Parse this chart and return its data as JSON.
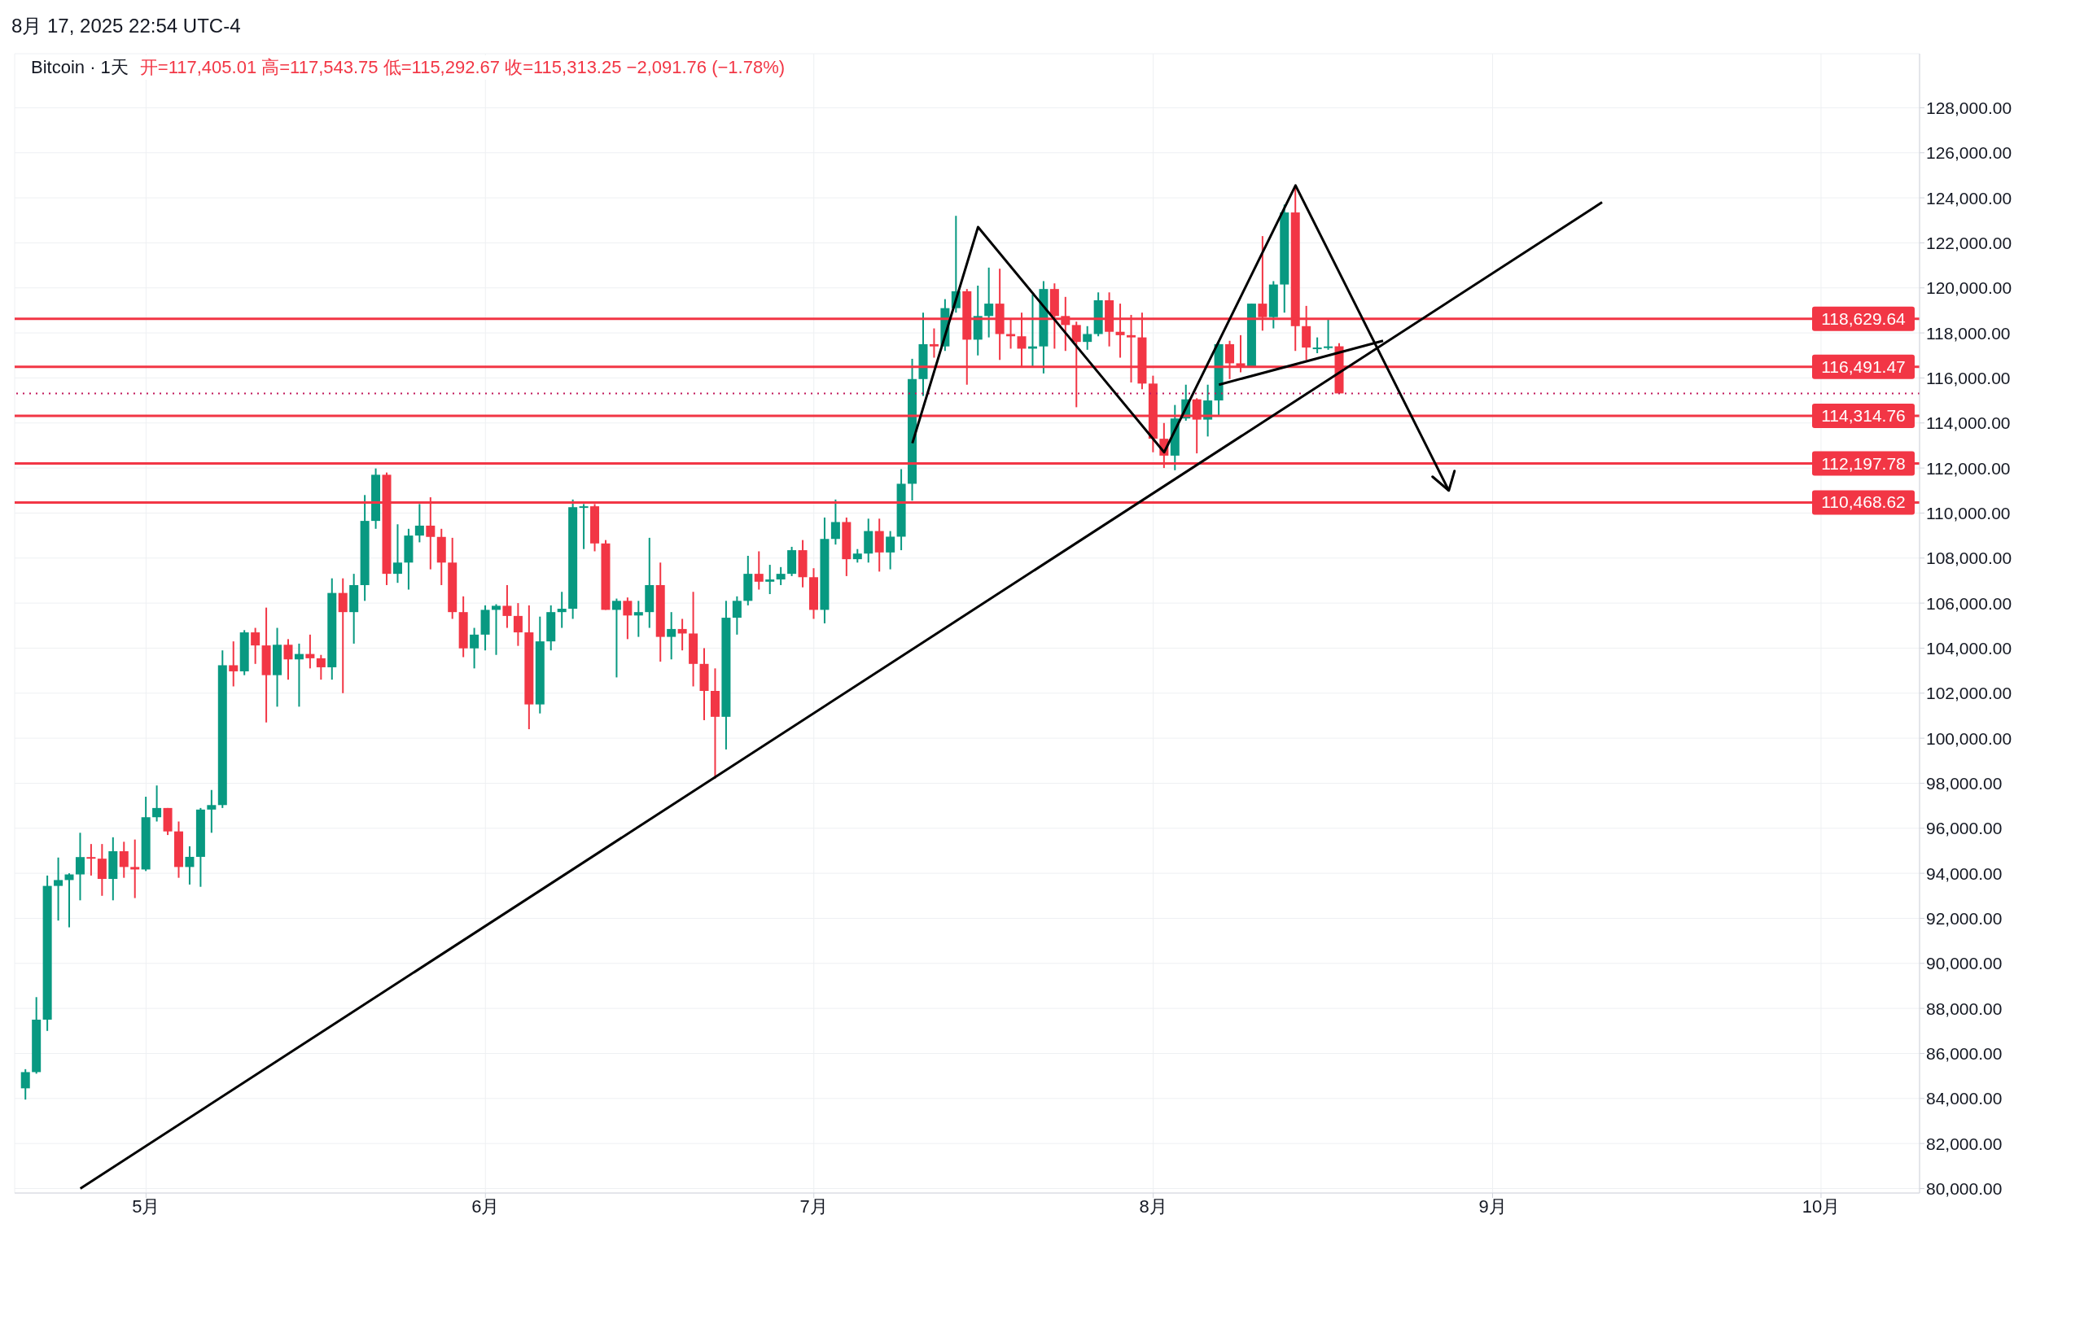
{
  "chart_data": {
    "type": "candlestick",
    "title": "Bitcoin · 1天",
    "annotations": [
      "8月 17, 2025 22:54 UTC-4",
      "开=117,405.01 高=117,543.75 低=115,292.67 收=115,313.25 −2,091.76 (−1.78%)"
    ],
    "x": [
      "2025-04-20",
      "2025-04-21",
      "2025-04-22",
      "2025-04-23",
      "2025-04-24",
      "2025-04-25",
      "2025-04-26",
      "2025-04-27",
      "2025-04-28",
      "2025-04-29",
      "2025-04-30",
      "2025-05-01",
      "2025-05-02",
      "2025-05-03",
      "2025-05-04",
      "2025-05-05",
      "2025-05-06",
      "2025-05-07",
      "2025-05-08",
      "2025-05-09",
      "2025-05-10",
      "2025-05-11",
      "2025-05-12",
      "2025-05-13",
      "2025-05-14",
      "2025-05-15",
      "2025-05-16",
      "2025-05-17",
      "2025-05-18",
      "2025-05-19",
      "2025-05-20",
      "2025-05-21",
      "2025-05-22",
      "2025-05-23",
      "2025-05-24",
      "2025-05-25",
      "2025-05-26",
      "2025-05-27",
      "2025-05-28",
      "2025-05-29",
      "2025-05-30",
      "2025-05-31",
      "2025-06-01",
      "2025-06-02",
      "2025-06-03",
      "2025-06-04",
      "2025-06-05",
      "2025-06-06",
      "2025-06-07",
      "2025-06-08",
      "2025-06-09",
      "2025-06-10",
      "2025-06-11",
      "2025-06-12",
      "2025-06-13",
      "2025-06-14",
      "2025-06-15",
      "2025-06-16",
      "2025-06-17",
      "2025-06-18",
      "2025-06-19",
      "2025-06-20",
      "2025-06-21",
      "2025-06-22",
      "2025-06-23",
      "2025-06-24",
      "2025-06-25",
      "2025-06-26",
      "2025-06-27",
      "2025-06-28",
      "2025-06-29",
      "2025-06-30",
      "2025-07-01",
      "2025-07-02",
      "2025-07-03",
      "2025-07-04",
      "2025-07-05",
      "2025-07-06",
      "2025-07-07",
      "2025-07-08",
      "2025-07-09",
      "2025-07-10",
      "2025-07-11",
      "2025-07-12",
      "2025-07-13",
      "2025-07-14",
      "2025-07-15",
      "2025-07-16",
      "2025-07-17",
      "2025-07-18",
      "2025-07-19",
      "2025-07-20",
      "2025-07-21",
      "2025-07-22",
      "2025-07-23",
      "2025-07-24",
      "2025-07-25",
      "2025-07-26",
      "2025-07-27",
      "2025-07-28",
      "2025-07-29",
      "2025-07-30",
      "2025-07-31",
      "2025-08-01",
      "2025-08-02",
      "2025-08-03",
      "2025-08-04",
      "2025-08-05",
      "2025-08-06",
      "2025-08-07",
      "2025-08-08",
      "2025-08-09",
      "2025-08-10",
      "2025-08-11",
      "2025-08-12",
      "2025-08-13",
      "2025-08-14",
      "2025-08-15",
      "2025-08-16",
      "2025-08-17",
      "2025-08-18"
    ],
    "ohlc": [
      [
        84450,
        85300,
        83950,
        85170
      ],
      [
        85170,
        88500,
        85100,
        87500
      ],
      [
        87500,
        93900,
        87000,
        93440
      ],
      [
        93440,
        94700,
        91900,
        93700
      ],
      [
        93700,
        94000,
        91600,
        93950
      ],
      [
        93950,
        95800,
        92800,
        94720
      ],
      [
        94720,
        95300,
        93900,
        94650
      ],
      [
        94650,
        95300,
        93000,
        93750
      ],
      [
        93750,
        95600,
        92800,
        94980
      ],
      [
        94980,
        95400,
        93800,
        94280
      ],
      [
        94280,
        95500,
        92900,
        94170
      ],
      [
        94170,
        97400,
        94100,
        96490
      ],
      [
        96490,
        97900,
        96300,
        96900
      ],
      [
        96900,
        96900,
        95700,
        95860
      ],
      [
        95860,
        96300,
        93800,
        94280
      ],
      [
        94280,
        95200,
        93500,
        94730
      ],
      [
        94730,
        96900,
        93400,
        96830
      ],
      [
        96830,
        97700,
        95800,
        97030
      ],
      [
        97030,
        103900,
        96900,
        103240
      ],
      [
        103240,
        104300,
        102300,
        102970
      ],
      [
        102970,
        104800,
        102800,
        104700
      ],
      [
        104700,
        104900,
        103300,
        104120
      ],
      [
        104120,
        105800,
        100700,
        102800
      ],
      [
        102800,
        104900,
        101400,
        104150
      ],
      [
        104150,
        104400,
        102600,
        103500
      ],
      [
        103500,
        104200,
        101400,
        103740
      ],
      [
        103740,
        104600,
        103100,
        103550
      ],
      [
        103550,
        103700,
        102600,
        103150
      ],
      [
        103150,
        107100,
        102600,
        106450
      ],
      [
        106450,
        107100,
        102000,
        105600
      ],
      [
        105600,
        107300,
        104200,
        106800
      ],
      [
        106800,
        110800,
        106100,
        109650
      ],
      [
        109650,
        111980,
        109300,
        111700
      ],
      [
        111700,
        111800,
        106800,
        107300
      ],
      [
        107300,
        109500,
        106900,
        107800
      ],
      [
        107800,
        109300,
        106600,
        109000
      ],
      [
        109000,
        110400,
        108700,
        109440
      ],
      [
        109440,
        110700,
        107500,
        108940
      ],
      [
        108940,
        109300,
        106800,
        107800
      ],
      [
        107800,
        108900,
        105300,
        105600
      ],
      [
        105600,
        106300,
        103600,
        103990
      ],
      [
        103990,
        104900,
        103100,
        104600
      ],
      [
        104600,
        105900,
        103900,
        105700
      ],
      [
        105700,
        105950,
        103700,
        105880
      ],
      [
        105880,
        106800,
        104900,
        105430
      ],
      [
        105430,
        106000,
        104100,
        104700
      ],
      [
        104700,
        105900,
        100400,
        101500
      ],
      [
        101500,
        105400,
        101100,
        104300
      ],
      [
        104300,
        105900,
        103900,
        105600
      ],
      [
        105600,
        106500,
        104900,
        105750
      ],
      [
        105750,
        110600,
        105300,
        110260
      ],
      [
        110260,
        110400,
        108400,
        110300
      ],
      [
        110300,
        110400,
        108300,
        108650
      ],
      [
        108650,
        108800,
        105700,
        105700
      ],
      [
        105700,
        106200,
        102700,
        106100
      ],
      [
        106100,
        106250,
        104400,
        105450
      ],
      [
        105450,
        106100,
        104500,
        105600
      ],
      [
        105600,
        108900,
        104900,
        106800
      ],
      [
        106800,
        107800,
        103400,
        104500
      ],
      [
        104500,
        105600,
        103500,
        104850
      ],
      [
        104850,
        105300,
        103900,
        104650
      ],
      [
        104650,
        106500,
        102300,
        103300
      ],
      [
        103300,
        104000,
        100800,
        102100
      ],
      [
        102100,
        103100,
        98200,
        100950
      ],
      [
        100950,
        106100,
        99500,
        105350
      ],
      [
        105350,
        106300,
        104600,
        106100
      ],
      [
        106100,
        108100,
        105900,
        107300
      ],
      [
        107300,
        108300,
        106600,
        106950
      ],
      [
        106950,
        107700,
        106400,
        107050
      ],
      [
        107050,
        107600,
        106800,
        107300
      ],
      [
        107300,
        108500,
        107200,
        108350
      ],
      [
        108350,
        108800,
        106700,
        107150
      ],
      [
        107150,
        107550,
        105300,
        105700
      ],
      [
        105700,
        109800,
        105100,
        108850
      ],
      [
        108850,
        110600,
        108600,
        109600
      ],
      [
        109600,
        109800,
        107200,
        107950
      ],
      [
        107950,
        108400,
        107800,
        108200
      ],
      [
        108200,
        109750,
        107800,
        109200
      ],
      [
        109200,
        109750,
        107400,
        108250
      ],
      [
        108250,
        109200,
        107500,
        108950
      ],
      [
        108950,
        111950,
        108350,
        111300
      ],
      [
        111300,
        116850,
        110550,
        115950
      ],
      [
        115950,
        118900,
        115200,
        117500
      ],
      [
        117500,
        118200,
        116900,
        117400
      ],
      [
        117400,
        119500,
        117200,
        119100
      ],
      [
        119100,
        123200,
        118900,
        119850
      ],
      [
        119850,
        119950,
        115700,
        117700
      ],
      [
        117700,
        120100,
        117000,
        118750
      ],
      [
        118750,
        120900,
        117800,
        119300
      ],
      [
        119300,
        120850,
        116800,
        117950
      ],
      [
        117950,
        118650,
        117300,
        117850
      ],
      [
        117850,
        118900,
        116500,
        117300
      ],
      [
        117300,
        119700,
        116500,
        117400
      ],
      [
        117400,
        120300,
        116200,
        119950
      ],
      [
        119950,
        120200,
        117300,
        118750
      ],
      [
        118750,
        119600,
        117200,
        118350
      ],
      [
        118350,
        118500,
        114700,
        117600
      ],
      [
        117600,
        118300,
        117250,
        117950
      ],
      [
        117950,
        119800,
        117850,
        119450
      ],
      [
        119450,
        119800,
        117400,
        118050
      ],
      [
        118050,
        119300,
        116900,
        117900
      ],
      [
        117900,
        118800,
        115800,
        117800
      ],
      [
        117800,
        118900,
        115500,
        115750
      ],
      [
        115750,
        116100,
        112700,
        113300
      ],
      [
        113300,
        114000,
        112000,
        112550
      ],
      [
        112550,
        114800,
        111900,
        114200
      ],
      [
        114200,
        115700,
        114100,
        115050
      ],
      [
        115050,
        115100,
        112650,
        114150
      ],
      [
        114150,
        115700,
        113400,
        115000
      ],
      [
        115000,
        117600,
        114300,
        117500
      ],
      [
        117500,
        117650,
        115950,
        116650
      ],
      [
        116650,
        117900,
        116250,
        116500
      ],
      [
        116500,
        119300,
        116500,
        119300
      ],
      [
        119300,
        122300,
        118100,
        118700
      ],
      [
        118700,
        120300,
        118200,
        120150
      ],
      [
        120150,
        123700,
        118900,
        123350
      ],
      [
        123350,
        124450,
        117200,
        118300
      ],
      [
        118300,
        119200,
        116800,
        117350
      ],
      [
        117350,
        117800,
        117100,
        117350
      ],
      [
        117350,
        118600,
        117250,
        117400
      ],
      [
        117405.01,
        117543.75,
        115292.67,
        115313.25
      ]
    ],
    "series": [
      {
        "type": "line",
        "color": "#000000",
        "x": [
          "2025-04-25",
          "2025-09-11"
        ],
        "values": [
          80000,
          123800
        ]
      },
      {
        "type": "line",
        "color": "#000000",
        "x": [
          "2025-07-10",
          "2025-07-16",
          "2025-08-02",
          "2025-08-14",
          "2025-08-28"
        ],
        "values": [
          113100,
          122700,
          112700,
          124550,
          111000
        ]
      },
      {
        "type": "line",
        "color": "#000000",
        "x": [
          "2025-08-07",
          "2025-08-22"
        ],
        "values": [
          115700,
          117650
        ]
      }
    ],
    "ref_lines": [
      {
        "axis": "y",
        "value": 118629.64,
        "label": "118,629.64",
        "color": "#f23645"
      },
      {
        "axis": "y",
        "value": 116491.47,
        "label": "116,491.47",
        "color": "#f23645"
      },
      {
        "axis": "y",
        "value": 114314.76,
        "label": "114,314.76",
        "color": "#f23645"
      },
      {
        "axis": "y",
        "value": 112197.78,
        "label": "112,197.78",
        "color": "#f23645"
      },
      {
        "axis": "y",
        "value": 110468.62,
        "label": "110,468.62",
        "color": "#f23645"
      },
      {
        "axis": "y",
        "value": 115313.25,
        "color": "#c2185b",
        "line_style": "dotted"
      }
    ],
    "xlim": [
      "2025-04-19",
      "2025-10-10"
    ],
    "xticks": [
      {
        "value": "2025-05-01",
        "label": "5月"
      },
      {
        "value": "2025-06-01",
        "label": "6月"
      },
      {
        "value": "2025-07-01",
        "label": "7月"
      },
      {
        "value": "2025-08-01",
        "label": "8月"
      },
      {
        "value": "2025-09-01",
        "label": "9月"
      },
      {
        "value": "2025-10-01",
        "label": "10月"
      }
    ],
    "ylim": [
      79800,
      130400
    ],
    "yticks": [
      {
        "value": 80000,
        "label": "80,000.00"
      },
      {
        "value": 82000,
        "label": "82,000.00"
      },
      {
        "value": 84000,
        "label": "84,000.00"
      },
      {
        "value": 86000,
        "label": "86,000.00"
      },
      {
        "value": 88000,
        "label": "88,000.00"
      },
      {
        "value": 90000,
        "label": "90,000.00"
      },
      {
        "value": 92000,
        "label": "92,000.00"
      },
      {
        "value": 94000,
        "label": "94,000.00"
      },
      {
        "value": 96000,
        "label": "96,000.00"
      },
      {
        "value": 98000,
        "label": "98,000.00"
      },
      {
        "value": 100000,
        "label": "100,000.00"
      },
      {
        "value": 102000,
        "label": "102,000.00"
      },
      {
        "value": 104000,
        "label": "104,000.00"
      },
      {
        "value": 106000,
        "label": "106,000.00"
      },
      {
        "value": 108000,
        "label": "108,000.00"
      },
      {
        "value": 110000,
        "label": "110,000.00"
      },
      {
        "value": 112000,
        "label": "112,000.00"
      },
      {
        "value": 114000,
        "label": "114,000.00"
      },
      {
        "value": 116000,
        "label": "116,000.00"
      },
      {
        "value": 118000,
        "label": "118,000.00"
      },
      {
        "value": 120000,
        "label": "120,000.00"
      },
      {
        "value": 122000,
        "label": "122,000.00"
      },
      {
        "value": 124000,
        "label": "124,000.00"
      },
      {
        "value": 126000,
        "label": "126,000.00"
      },
      {
        "value": 128000,
        "label": "128,000.00"
      }
    ],
    "grid": true
  }
}
